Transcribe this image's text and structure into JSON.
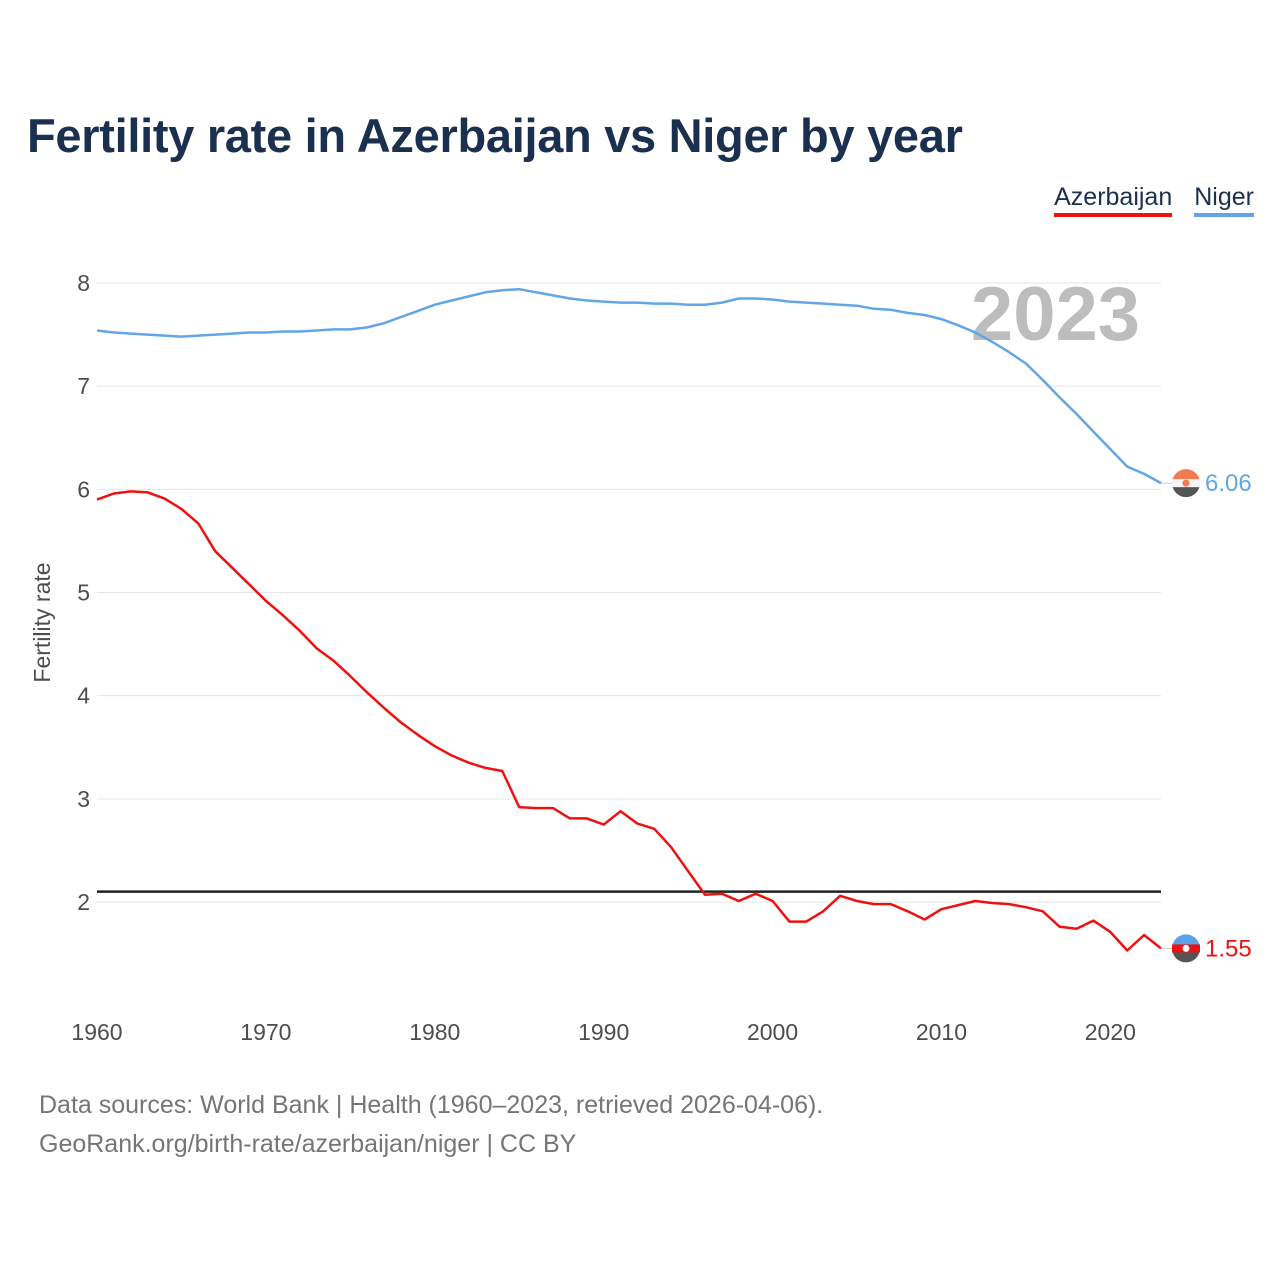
{
  "title": "Fertility rate in Azerbaijan vs Niger by year",
  "legend": [
    {
      "label": "Azerbaijan",
      "color": "#ee1111"
    },
    {
      "label": "Niger",
      "color": "#62a6e6"
    }
  ],
  "footer": {
    "line1": "Data sources: World Bank | Health (1960–2023, retrieved 2026-04-06).",
    "line2": "GeoRank.org/birth-rate/azerbaijan/niger | CC BY"
  },
  "chart_data": {
    "type": "line",
    "title": "Fertility rate in Azerbaijan vs Niger by year",
    "xlabel": "",
    "ylabel": "Fertility rate",
    "year_label": "2023",
    "xlim": [
      1960,
      2023
    ],
    "ylim": [
      1,
      8.3
    ],
    "x_ticks": [
      1960,
      1970,
      1980,
      1990,
      2000,
      2010,
      2020
    ],
    "y_ticks": [
      2,
      3,
      4,
      5,
      6,
      7,
      8
    ],
    "reference_line": 2.1,
    "x": [
      1960,
      1961,
      1962,
      1963,
      1964,
      1965,
      1966,
      1967,
      1968,
      1969,
      1970,
      1971,
      1972,
      1973,
      1974,
      1975,
      1976,
      1977,
      1978,
      1979,
      1980,
      1981,
      1982,
      1983,
      1984,
      1985,
      1986,
      1987,
      1988,
      1989,
      1990,
      1991,
      1992,
      1993,
      1994,
      1995,
      1996,
      1997,
      1998,
      1999,
      2000,
      2001,
      2002,
      2003,
      2004,
      2005,
      2006,
      2007,
      2008,
      2009,
      2010,
      2011,
      2012,
      2013,
      2014,
      2015,
      2016,
      2017,
      2018,
      2019,
      2020,
      2021,
      2022,
      2023
    ],
    "series": [
      {
        "name": "Azerbaijan",
        "color": "#ee1111",
        "end_label": "1.55",
        "values": [
          5.9,
          5.96,
          5.98,
          5.97,
          5.91,
          5.81,
          5.67,
          5.4,
          5.24,
          5.08,
          4.92,
          4.78,
          4.63,
          4.46,
          4.34,
          4.19,
          4.03,
          3.88,
          3.74,
          3.62,
          3.51,
          3.42,
          3.35,
          3.3,
          3.27,
          2.92,
          2.91,
          2.91,
          2.81,
          2.81,
          2.75,
          2.88,
          2.76,
          2.71,
          2.53,
          2.3,
          2.07,
          2.08,
          2.01,
          2.08,
          2.01,
          1.81,
          1.81,
          1.91,
          2.06,
          2.01,
          1.98,
          1.98,
          1.91,
          1.83,
          1.93,
          1.97,
          2.01,
          1.99,
          1.98,
          1.95,
          1.91,
          1.76,
          1.74,
          1.82,
          1.71,
          1.53,
          1.68,
          1.55
        ]
      },
      {
        "name": "Niger",
        "color": "#62a6e6",
        "end_label": "6.06",
        "values": [
          7.54,
          7.52,
          7.51,
          7.5,
          7.49,
          7.48,
          7.49,
          7.5,
          7.51,
          7.52,
          7.52,
          7.53,
          7.53,
          7.54,
          7.55,
          7.55,
          7.57,
          7.61,
          7.67,
          7.73,
          7.79,
          7.83,
          7.87,
          7.91,
          7.93,
          7.94,
          7.91,
          7.88,
          7.85,
          7.83,
          7.82,
          7.81,
          7.81,
          7.8,
          7.8,
          7.79,
          7.79,
          7.81,
          7.85,
          7.85,
          7.84,
          7.82,
          7.81,
          7.8,
          7.79,
          7.78,
          7.75,
          7.74,
          7.71,
          7.69,
          7.65,
          7.59,
          7.52,
          7.43,
          7.33,
          7.22,
          7.06,
          6.89,
          6.73,
          6.56,
          6.39,
          6.22,
          6.15,
          6.06
        ]
      }
    ]
  }
}
